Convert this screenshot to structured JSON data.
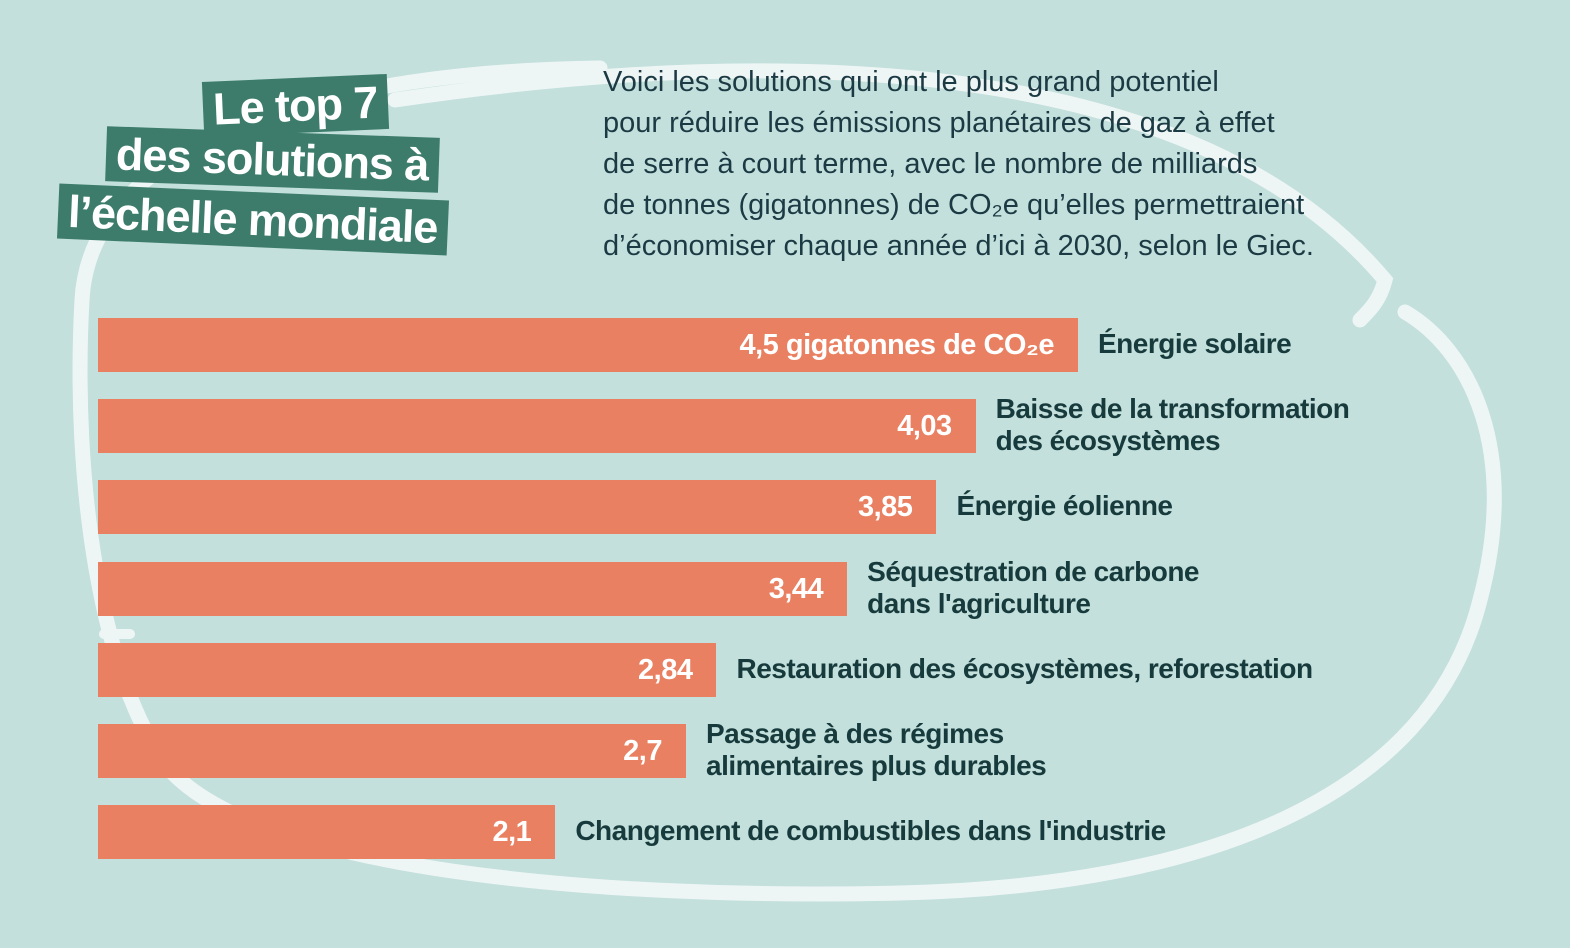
{
  "heading": {
    "line1": "Le top 7",
    "line2": "des solutions à",
    "line3": "l’échelle mondiale"
  },
  "intro": {
    "lines": [
      "Voici les solutions qui ont le plus grand potentiel",
      "pour réduire les émissions planétaires de gaz à effet",
      "de serre à court terme, avec le nombre de milliards",
      "de tonnes (gigatonnes) de CO₂e qu’elles permettraient",
      "d’économiser chaque année d’ici à 2030, selon le Giec."
    ]
  },
  "colors": {
    "background": "#c3e0dc",
    "bar": "#ea8062",
    "heading_box": "#3d7c6b",
    "text_dark": "#173a3c",
    "swirl": "#eef6f5"
  },
  "chart_data": {
    "type": "bar",
    "orientation": "horizontal",
    "unit": "gigatonnes de CO₂e",
    "categories": [
      [
        "Énergie solaire"
      ],
      [
        "Baisse de la transformation",
        "des écosystèmes"
      ],
      [
        "Énergie éolienne"
      ],
      [
        "Séquestration de carbone",
        "dans l'agriculture"
      ],
      [
        "Restauration des écosystèmes, reforestation"
      ],
      [
        "Passage à des régimes",
        "alimentaires plus durables"
      ],
      [
        "Changement de combustibles dans l'industrie"
      ]
    ],
    "values": [
      4.5,
      4.03,
      3.85,
      3.44,
      2.84,
      2.7,
      2.1
    ],
    "value_labels": [
      "4,5 gigatonnes de CO₂e",
      "4,03",
      "3,85",
      "3,44",
      "2,84",
      "2,7",
      "2,1"
    ],
    "xlim": [
      0,
      4.5
    ]
  }
}
